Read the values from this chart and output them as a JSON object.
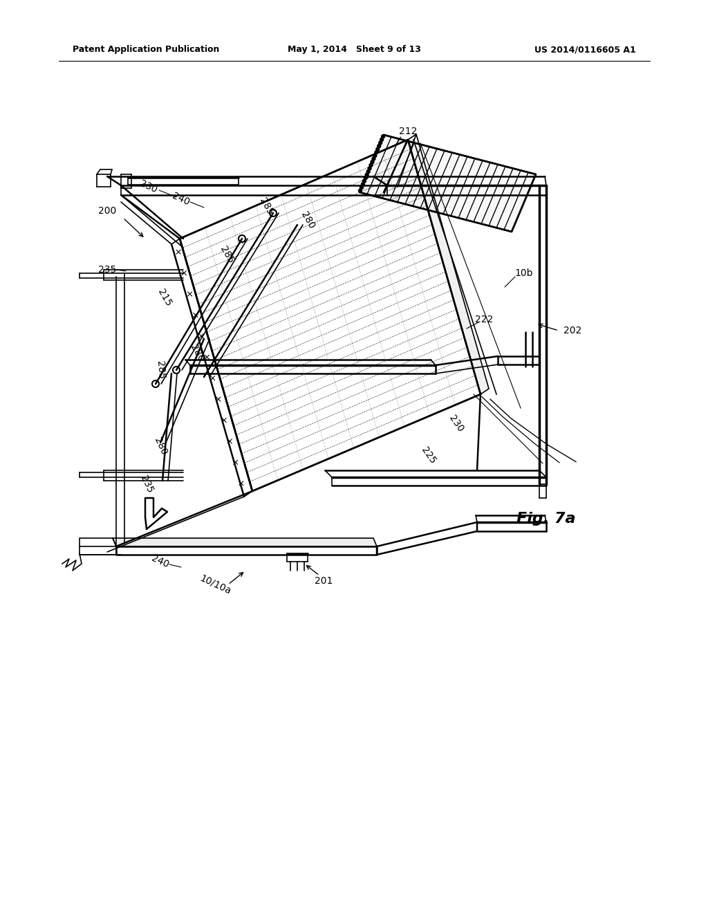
{
  "background_color": "#ffffff",
  "header_left": "Patent Application Publication",
  "header_center": "May 1, 2014   Sheet 9 of 13",
  "header_right": "US 2014/0116605 A1",
  "fig_label": "Fig. 7a"
}
